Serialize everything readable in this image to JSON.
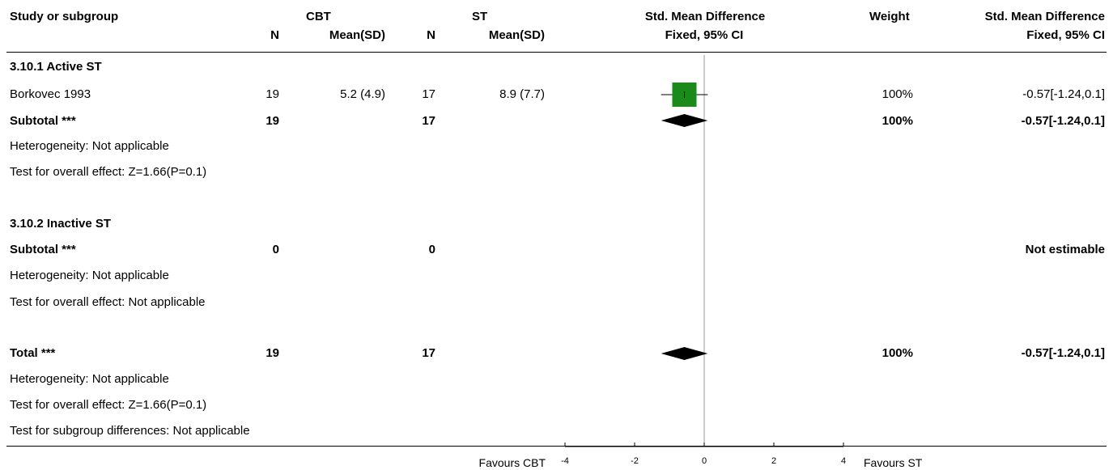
{
  "header": {
    "study": "Study or subgroup",
    "group1": "CBT",
    "group2": "ST",
    "effect": "Std. Mean Difference",
    "weight": "Weight",
    "effect2": "Std. Mean Difference",
    "n1": "N",
    "meansd1": "Mean(SD)",
    "n2": "N",
    "meansd2": "Mean(SD)",
    "method": "Fixed, 95% CI",
    "method2": "Fixed, 95% CI"
  },
  "rows": {
    "sub1_title": "3.10.1 Active ST",
    "study1_name": "Borkovec 1993",
    "study1_n1": "19",
    "study1_msd1": "5.2 (4.9)",
    "study1_n2": "17",
    "study1_msd2": "8.9 (7.7)",
    "study1_weight": "100%",
    "study1_ci": "-0.57[-1.24,0.1]",
    "sub1_total_label": "Subtotal ***",
    "sub1_n1": "19",
    "sub1_n2": "17",
    "sub1_weight": "100%",
    "sub1_ci": "-0.57[-1.24,0.1]",
    "sub1_het": "Heterogeneity: Not applicable",
    "sub1_test": "Test for overall effect: Z=1.66(P=0.1)",
    "sub2_title": "3.10.2 Inactive ST",
    "sub2_total_label": "Subtotal ***",
    "sub2_n1": "0",
    "sub2_n2": "0",
    "sub2_ci": "Not estimable",
    "sub2_het": "Heterogeneity: Not applicable",
    "sub2_test": "Test for overall effect: Not applicable",
    "total_label": "Total ***",
    "total_n1": "19",
    "total_n2": "17",
    "total_weight": "100%",
    "total_ci": "-0.57[-1.24,0.1]",
    "total_het": "Heterogeneity: Not applicable",
    "total_test": "Test for overall effect: Z=1.66(P=0.1)",
    "subgroup_test": "Test for subgroup differences: Not applicable"
  },
  "axis": {
    "favours_left": "Favours CBT",
    "favours_right": "Favours ST"
  },
  "chart_data": {
    "type": "forest",
    "xlim": [
      -4,
      4
    ],
    "ticks": [
      -4,
      -2,
      0,
      2,
      4
    ],
    "null_line": 0,
    "studies": [
      {
        "name": "Borkovec 1993",
        "estimate": -0.57,
        "lower": -1.24,
        "upper": 0.1,
        "weight": 100
      }
    ],
    "diamonds": [
      {
        "name": "Subtotal",
        "estimate": -0.57,
        "lower": -1.24,
        "upper": 0.1
      },
      {
        "name": "Total",
        "estimate": -0.57,
        "lower": -1.24,
        "upper": 0.1
      }
    ],
    "colors": {
      "study_box": "#1a8a1a",
      "diamond": "#000000"
    }
  }
}
